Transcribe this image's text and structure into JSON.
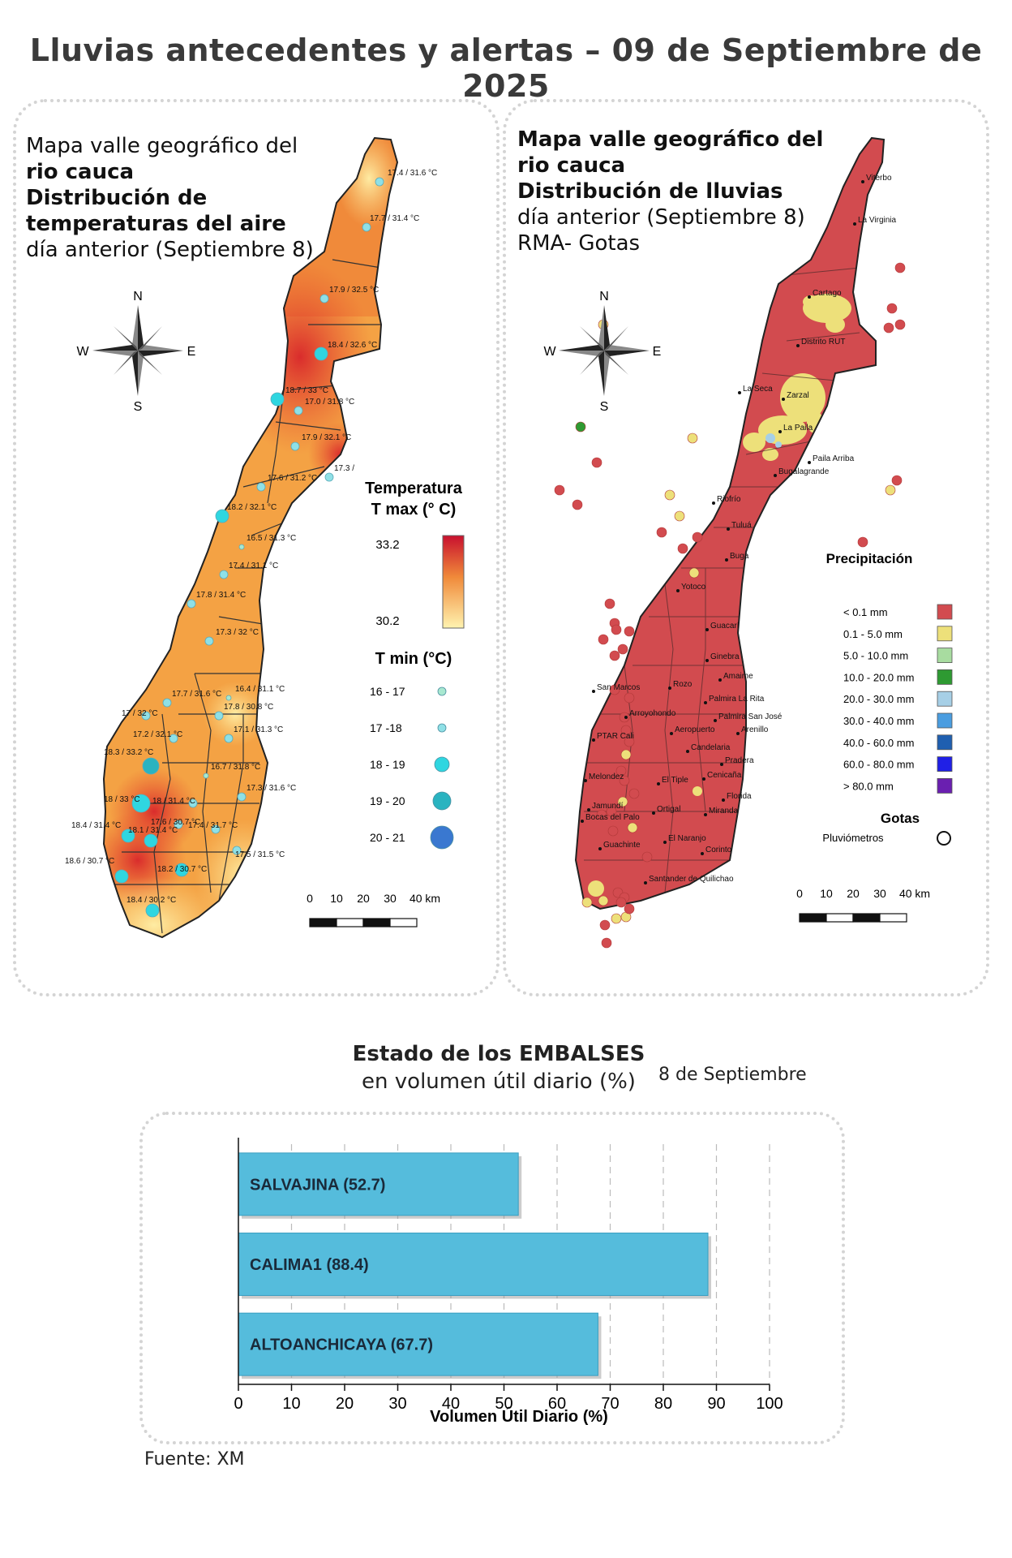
{
  "page_title": "Lluvias antecedentes y alertas – 09 de Septiembre de 2025",
  "temp_map": {
    "title_lines": [
      "Mapa valle geográfico del",
      "rio cauca",
      "Distribución de",
      "temperaturas del aire"
    ],
    "subtitle": "día anterior (Septiembre 8)",
    "compass": {
      "n": "N",
      "s": "S",
      "e": "E",
      "w": "W"
    },
    "legend_tmax_title_1": "Temperatura",
    "legend_tmax_title_2": "T max (° C)",
    "legend_tmax_high": "33.2",
    "legend_tmax_low": "30.2",
    "legend_tmin_title": "T min (°C)",
    "legend_tmin_items": [
      {
        "label": "16 - 17",
        "color": "#a8e8d0"
      },
      {
        "label": "17 -18",
        "color": "#8fe0e6"
      },
      {
        "label": "18 - 19",
        "color": "#2fd6e0"
      },
      {
        "label": "19 - 20",
        "color": "#2ab3c0"
      },
      {
        "label": "20 - 21",
        "color": "#3a78d0"
      }
    ],
    "scale_labels": [
      "0",
      "10",
      "20",
      "30",
      "40 km"
    ],
    "station_labels": [
      "17.4 / 31.6 °C",
      "17.7 / 31.4 °C",
      "17.9 / 32.5 °C",
      "18.4 / 32.6 °C",
      "18.7 / 33 °C",
      "17.0 / 31.8 °C",
      "17.9 / 32.1 °C",
      "17.3 /",
      "17.6 / 31.2 °C",
      "18.2 / 32.1 °C",
      "16.5 / 31.3 °C",
      "17.4 / 31.1 °C",
      "17.8 / 31.4 °C",
      "17.3 / 32 °C",
      "17.7 / 31.6 °C",
      "16.4 / 31.1 °C",
      "17 / 32 °C",
      "17.8 / 30.8 °C",
      "17.2 / 32.1 °C",
      "17.1 / 31.3 °C",
      "18.3 / 33.2 °C",
      "16.7 / 31.8 °C",
      "18 / 33 °C",
      "18 / 31.4 °C",
      "17.3 / 31.6 °C",
      "17.6 / 30.7 °C",
      "18.4 / 31.4 °C",
      "17.4 / 31.7 °C",
      "18.1 / 31.4 °C",
      "17.5 / 31.5 °C",
      "18.2 / 30.7 °C",
      "18.6 / 30.7 °C",
      "18.4 / 30.2 °C"
    ]
  },
  "rain_map": {
    "title_lines": [
      "Mapa valle geográfico del",
      "rio cauca"
    ],
    "title_bold": "Distribución de lluvias",
    "subtitle_1": "día anterior (Septiembre 8)",
    "subtitle_2": "RMA- Gotas",
    "compass": {
      "n": "N",
      "s": "S",
      "e": "E",
      "w": "W"
    },
    "legend_title": "Precipitación",
    "legend_items": [
      {
        "label": "< 0.1 mm",
        "color": "#d24b4f"
      },
      {
        "label": "0.1 - 5.0 mm",
        "color": "#ede07a"
      },
      {
        "label": "5.0 - 10.0 mm",
        "color": "#a8dca0"
      },
      {
        "label": "10.0 - 20.0 mm",
        "color": "#2e9a32"
      },
      {
        "label": "20.0 - 30.0 mm",
        "color": "#a6cfe6"
      },
      {
        "label": "30.0 - 40.0 mm",
        "color": "#4a9de0"
      },
      {
        "label": "40.0 - 60.0 mm",
        "color": "#1f5fb0"
      },
      {
        "label": "60.0 - 80.0 mm",
        "color": "#2020e6"
      },
      {
        "label": "> 80.0 mm",
        "color": "#6a1fb0"
      }
    ],
    "gotas_title": "Gotas",
    "gotas_label": "Pluviómetros",
    "scale_labels": [
      "0",
      "10",
      "20",
      "30",
      "40 km"
    ],
    "towns": [
      "Viterbo",
      "La Virginia",
      "Cartago",
      "Distrito RUT",
      "La Seca",
      "Zarzal",
      "La Paila",
      "Paila Arriba",
      "Bugalagrande",
      "Riofrío",
      "Tuluá",
      "Buga",
      "Yotoco",
      "Guacarí",
      "Ginebra",
      "San Marcos",
      "Rozo",
      "Amaime",
      "Palmira La Rita",
      "Arroyohondo",
      "Palmira San José",
      "Aeropuerto",
      "Arenillo",
      "PTAR Cali",
      "Candelaria",
      "Pradera",
      "Melondez",
      "Cenicaña",
      "El Tiple",
      "Florida",
      "Jamundí",
      "Bocas del Palo",
      "Ortigal",
      "Miranda",
      "El Naranjo",
      "Guachinte",
      "Corinto",
      "Santander de Quilichao"
    ]
  },
  "chart_heading_1": "Estado de los EMBALSES",
  "chart_heading_2": "en volumen útil diario (%)",
  "chart_date": "8 de Septiembre",
  "source": "Fuente: XM",
  "chart_data": {
    "type": "bar",
    "orientation": "horizontal",
    "categories": [
      "SALVAJINA",
      "CALIMA1",
      "ALTOANCHICAYA"
    ],
    "values": [
      52.7,
      88.4,
      67.7
    ],
    "bar_labels": [
      "SALVAJINA (52.7)",
      "CALIMA1 (88.4)",
      "ALTOANCHICAYA (67.7)"
    ],
    "xlabel": "Volumen Útil Diario (%)",
    "xlim": [
      0,
      100
    ],
    "xticks": [
      "0",
      "10",
      "20",
      "30",
      "40",
      "50",
      "60",
      "70",
      "80",
      "90",
      "100"
    ],
    "bar_color": "#55bcdc",
    "grid": true
  }
}
